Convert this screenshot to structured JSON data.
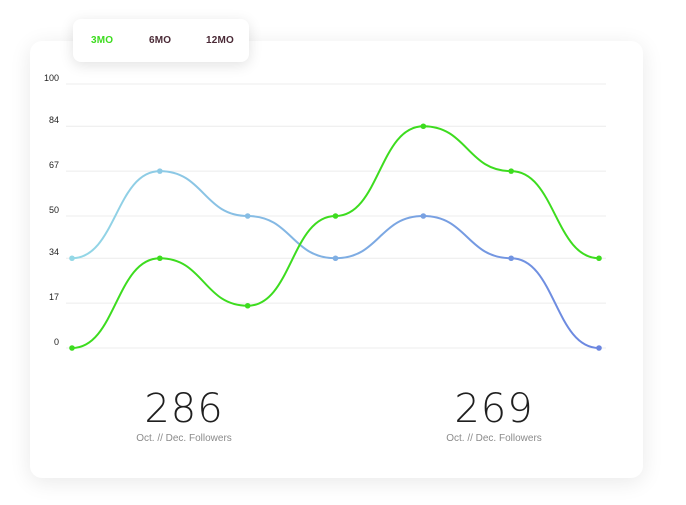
{
  "colors": {
    "active_tab": "#3ddc1f",
    "inactive_tab": "#4a2a36",
    "series_green": "#3ddc1f",
    "series_light_blue": "#94d8e6",
    "series_periwinkle": "#6b86e0",
    "gridline": "#ececec"
  },
  "tabs": [
    {
      "label": "3MO",
      "active": true
    },
    {
      "label": "6MO",
      "active": false
    },
    {
      "label": "12MO",
      "active": false
    }
  ],
  "stats": [
    {
      "value": "286",
      "label": "Oct. // Dec. Followers"
    },
    {
      "value": "269",
      "label": "Oct. // Dec. Followers"
    }
  ],
  "chart_data": {
    "type": "line",
    "x": [
      1,
      2,
      3,
      4,
      5,
      6,
      7
    ],
    "y_ticks": [
      "0",
      "17",
      "34",
      "50",
      "67",
      "84",
      "100"
    ],
    "ylim": [
      0,
      100
    ],
    "grid": true,
    "series": [
      {
        "values": [
          0,
          34,
          16,
          50,
          84,
          67,
          34
        ]
      },
      {
        "values": [
          34,
          67,
          50,
          34,
          50,
          34,
          0
        ]
      }
    ]
  }
}
